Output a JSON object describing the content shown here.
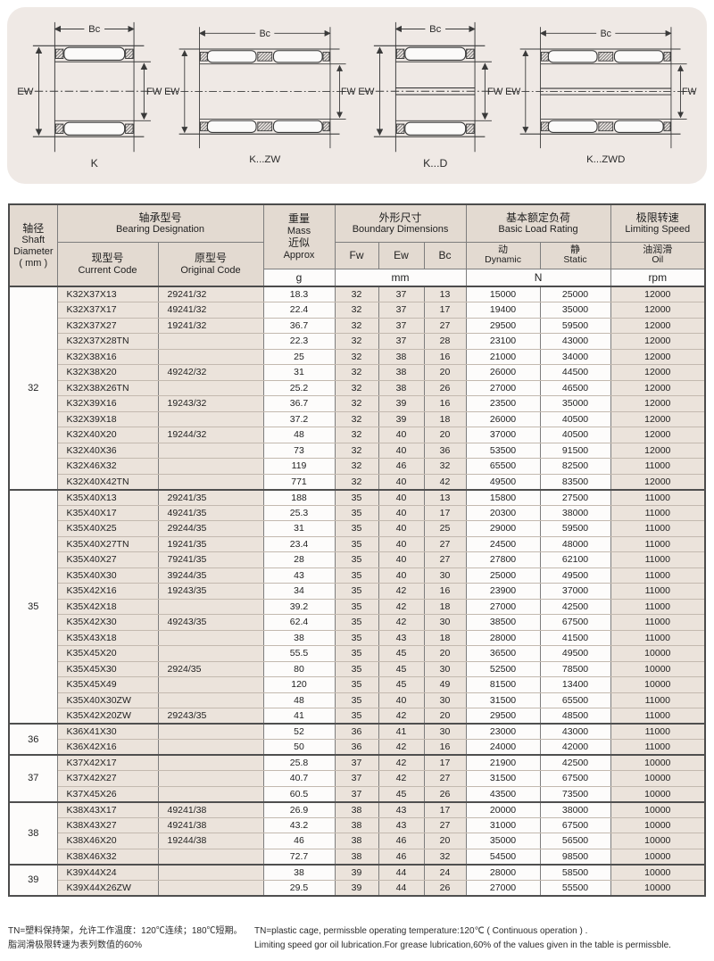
{
  "diagrams": {
    "labels": {
      "bc": "Bc",
      "ew": "EW",
      "fw": "FW"
    },
    "variants": [
      {
        "name": "K"
      },
      {
        "name": "K...ZW"
      },
      {
        "name": "K...D"
      },
      {
        "name": "K...ZWD"
      }
    ]
  },
  "table": {
    "headers": {
      "shaft_zh": "轴径",
      "shaft_en1": "Shaft",
      "shaft_en2": "Diameter",
      "shaft_unit": "( mm )",
      "designation_zh": "轴承型号",
      "designation_en": "Bearing Designation",
      "current_zh": "现型号",
      "current_en": "Current Code",
      "original_zh": "原型号",
      "original_en": "Original Code",
      "mass_zh": "重量",
      "mass_en": "Mass",
      "approx_zh": "近似",
      "approx_en": "Approx",
      "mass_unit": "g",
      "boundary_zh": "外形尺寸",
      "boundary_en": "Boundary Dimensions",
      "fw": "Fw",
      "ew": "Ew",
      "bc": "Bc",
      "boundary_unit": "mm",
      "load_zh": "基本额定负荷",
      "load_en": "Basic Load Rating",
      "dynamic_zh": "动",
      "dynamic_en": "Dynamic",
      "static_zh": "静",
      "static_en": "Static",
      "load_unit": "N",
      "speed_zh": "极限转速",
      "speed_en": "Limiting Speed",
      "oil_zh": "油润滑",
      "oil_en": "Oil",
      "speed_unit": "rpm"
    },
    "groups": [
      {
        "diameter": "32",
        "rows": [
          [
            "K32X37X13",
            "29241/32",
            "18.3",
            "32",
            "37",
            "13",
            "15000",
            "25000",
            "12000"
          ],
          [
            "K32X37X17",
            "49241/32",
            "22.4",
            "32",
            "37",
            "17",
            "19400",
            "35000",
            "12000"
          ],
          [
            "K32X37X27",
            "19241/32",
            "36.7",
            "32",
            "37",
            "27",
            "29500",
            "59500",
            "12000"
          ],
          [
            "K32X37X28TN",
            "",
            "22.3",
            "32",
            "37",
            "28",
            "23100",
            "43000",
            "12000"
          ],
          [
            "K32X38X16",
            "",
            "25",
            "32",
            "38",
            "16",
            "21000",
            "34000",
            "12000"
          ],
          [
            "K32X38X20",
            "49242/32",
            "31",
            "32",
            "38",
            "20",
            "26000",
            "44500",
            "12000"
          ],
          [
            "K32X38X26TN",
            "",
            "25.2",
            "32",
            "38",
            "26",
            "27000",
            "46500",
            "12000"
          ],
          [
            "K32X39X16",
            "19243/32",
            "36.7",
            "32",
            "39",
            "16",
            "23500",
            "35000",
            "12000"
          ],
          [
            "K32X39X18",
            "",
            "37.2",
            "32",
            "39",
            "18",
            "26000",
            "40500",
            "12000"
          ],
          [
            "K32X40X20",
            "19244/32",
            "48",
            "32",
            "40",
            "20",
            "37000",
            "40500",
            "12000"
          ],
          [
            "K32X40X36",
            "",
            "73",
            "32",
            "40",
            "36",
            "53500",
            "91500",
            "12000"
          ],
          [
            "K32X46X32",
            "",
            "119",
            "32",
            "46",
            "32",
            "65500",
            "82500",
            "11000"
          ],
          [
            "K32X40X42TN",
            "",
            "771",
            "32",
            "40",
            "42",
            "49500",
            "83500",
            "12000"
          ]
        ]
      },
      {
        "diameter": "35",
        "rows": [
          [
            "K35X40X13",
            "29241/35",
            "188",
            "35",
            "40",
            "13",
            "15800",
            "27500",
            "11000"
          ],
          [
            "K35X40X17",
            "49241/35",
            "25.3",
            "35",
            "40",
            "17",
            "20300",
            "38000",
            "11000"
          ],
          [
            "K35X40X25",
            "29244/35",
            "31",
            "35",
            "40",
            "25",
            "29000",
            "59500",
            "11000"
          ],
          [
            "K35X40X27TN",
            "19241/35",
            "23.4",
            "35",
            "40",
            "27",
            "24500",
            "48000",
            "11000"
          ],
          [
            "K35X40X27",
            "79241/35",
            "28",
            "35",
            "40",
            "27",
            "27800",
            "62100",
            "11000"
          ],
          [
            "K35X40X30",
            "39244/35",
            "43",
            "35",
            "40",
            "30",
            "25000",
            "49500",
            "11000"
          ],
          [
            "K35X42X16",
            "19243/35",
            "34",
            "35",
            "42",
            "16",
            "23900",
            "37000",
            "11000"
          ],
          [
            "K35X42X18",
            "",
            "39.2",
            "35",
            "42",
            "18",
            "27000",
            "42500",
            "11000"
          ],
          [
            "K35X42X30",
            "49243/35",
            "62.4",
            "35",
            "42",
            "30",
            "38500",
            "67500",
            "11000"
          ],
          [
            "K35X43X18",
            "",
            "38",
            "35",
            "43",
            "18",
            "28000",
            "41500",
            "11000"
          ],
          [
            "K35X45X20",
            "",
            "55.5",
            "35",
            "45",
            "20",
            "36500",
            "49500",
            "10000"
          ],
          [
            "K35X45X30",
            "2924/35",
            "80",
            "35",
            "45",
            "30",
            "52500",
            "78500",
            "10000"
          ],
          [
            "K35X45X49",
            "",
            "120",
            "35",
            "45",
            "49",
            "81500",
            "13400",
            "10000"
          ],
          [
            "K35X40X30ZW",
            "",
            "48",
            "35",
            "40",
            "30",
            "31500",
            "65500",
            "11000"
          ],
          [
            "K35X42X20ZW",
            "29243/35",
            "41",
            "35",
            "42",
            "20",
            "29500",
            "48500",
            "11000"
          ]
        ]
      },
      {
        "diameter": "36",
        "rows": [
          [
            "K36X41X30",
            "",
            "52",
            "36",
            "41",
            "30",
            "23000",
            "43000",
            "11000"
          ],
          [
            "K36X42X16",
            "",
            "50",
            "36",
            "42",
            "16",
            "24000",
            "42000",
            "11000"
          ]
        ]
      },
      {
        "diameter": "37",
        "rows": [
          [
            "K37X42X17",
            "",
            "25.8",
            "37",
            "42",
            "17",
            "21900",
            "42500",
            "10000"
          ],
          [
            "K37X42X27",
            "",
            "40.7",
            "37",
            "42",
            "27",
            "31500",
            "67500",
            "10000"
          ],
          [
            "K37X45X26",
            "",
            "60.5",
            "37",
            "45",
            "26",
            "43500",
            "73500",
            "10000"
          ]
        ]
      },
      {
        "diameter": "38",
        "rows": [
          [
            "K38X43X17",
            "49241/38",
            "26.9",
            "38",
            "43",
            "17",
            "20000",
            "38000",
            "10000"
          ],
          [
            "K38X43X27",
            "49241/38",
            "43.2",
            "38",
            "43",
            "27",
            "31000",
            "67500",
            "10000"
          ],
          [
            "K38X46X20",
            "19244/38",
            "46",
            "38",
            "46",
            "20",
            "35000",
            "56500",
            "10000"
          ],
          [
            "K38X46X32",
            "",
            "72.7",
            "38",
            "46",
            "32",
            "54500",
            "98500",
            "10000"
          ]
        ]
      },
      {
        "diameter": "39",
        "rows": [
          [
            "K39X44X24",
            "",
            "38",
            "39",
            "44",
            "24",
            "28000",
            "58500",
            "10000"
          ],
          [
            "K39X44X26ZW",
            "",
            "29.5",
            "39",
            "44",
            "26",
            "27000",
            "55500",
            "10000"
          ]
        ]
      }
    ]
  },
  "footnotes": {
    "zh1": "TN=塑料保持架，允许工作温度：120℃连续；180℃短期。",
    "zh2": "脂润滑极限转速为表列数值的60%",
    "en1": "TN=plastic cage, permissble operating temperature:120℃ ( Continuous operation ) .",
    "en2": "Limiting speed gor oil lubrication.For grease lubrication,60% of the values given in the table is permissble."
  },
  "colors": {
    "panel_bg": "#efe9e5",
    "header_bg": "#e3dad1",
    "cell_beige": "#ebe3db",
    "cell_white": "#fdfcfb",
    "border_dark": "#4c4c4c",
    "border_light": "#c3b9af",
    "line": "#3a3a3a"
  }
}
